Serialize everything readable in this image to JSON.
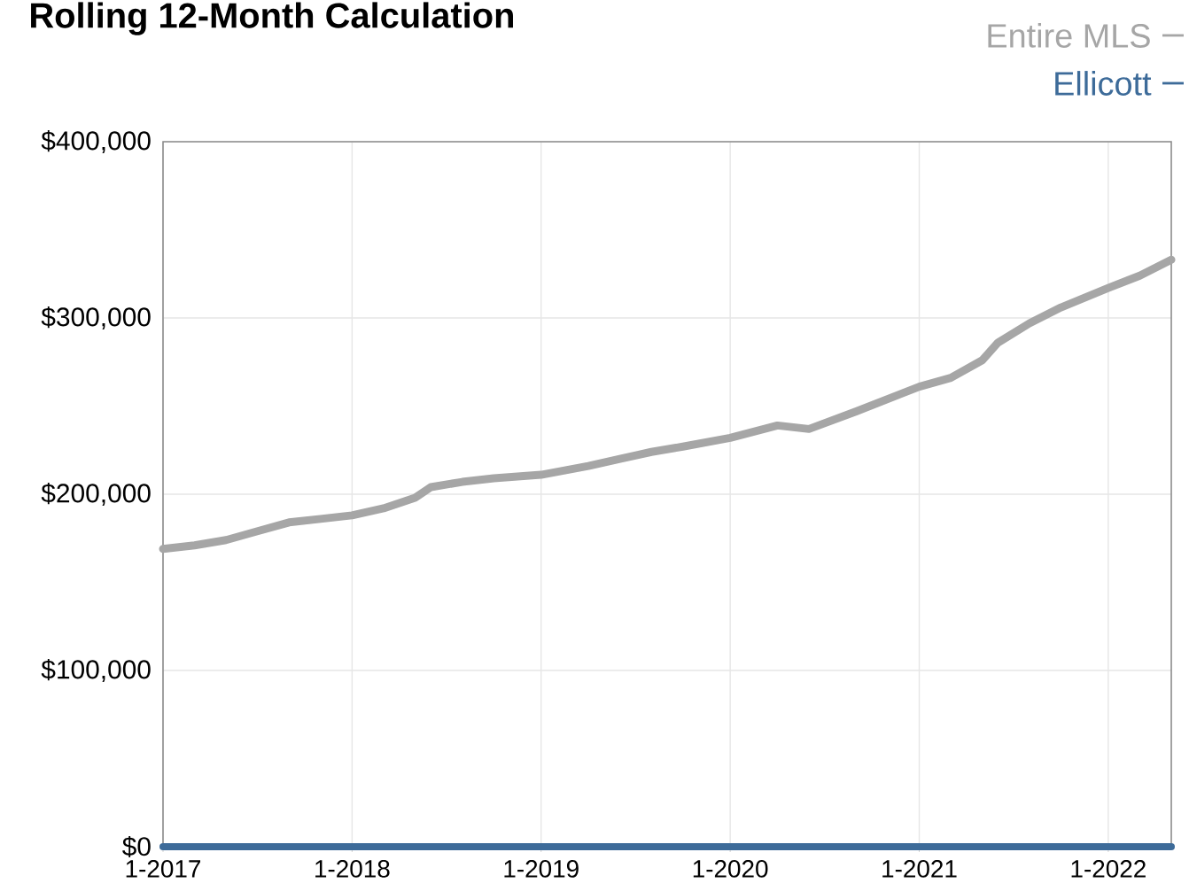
{
  "chart_data": {
    "type": "line",
    "title": "Rolling 12-Month Calculation",
    "x": [
      "2017-01",
      "2017-03",
      "2017-05",
      "2017-07",
      "2017-09",
      "2017-11",
      "2018-01",
      "2018-03",
      "2018-05",
      "2018-06",
      "2018-08",
      "2018-10",
      "2019-01",
      "2019-04",
      "2019-06",
      "2019-08",
      "2019-10",
      "2020-01",
      "2020-04",
      "2020-06",
      "2020-09",
      "2020-11",
      "2021-01",
      "2021-03",
      "2021-05",
      "2021-06",
      "2021-08",
      "2021-10",
      "2022-01",
      "2022-03",
      "2022-05"
    ],
    "series": [
      {
        "name": "Entire MLS",
        "color": "#a6a6a6",
        "values": [
          169000,
          171000,
          174000,
          179000,
          184000,
          186000,
          188000,
          192000,
          198000,
          204000,
          207000,
          209000,
          211000,
          216000,
          220000,
          224000,
          227000,
          232000,
          239000,
          237000,
          247000,
          254000,
          261000,
          266000,
          276000,
          286000,
          297000,
          306000,
          317000,
          324000,
          333000
        ]
      },
      {
        "name": "Ellicott",
        "color": "#3d6b99",
        "values": [
          0,
          0,
          0,
          0,
          0,
          0,
          0,
          0,
          0,
          0,
          0,
          0,
          0,
          0,
          0,
          0,
          0,
          0,
          0,
          0,
          0,
          0,
          0,
          0,
          0,
          0,
          0,
          0,
          0,
          0,
          0
        ]
      }
    ],
    "xlim": [
      "2017-01",
      "2022-05"
    ],
    "xticks": [
      {
        "value": "2017-01",
        "label": "1-2017"
      },
      {
        "value": "2018-01",
        "label": "1-2018"
      },
      {
        "value": "2019-01",
        "label": "1-2019"
      },
      {
        "value": "2020-01",
        "label": "1-2020"
      },
      {
        "value": "2021-01",
        "label": "1-2021"
      },
      {
        "value": "2022-01",
        "label": "1-2022"
      }
    ],
    "ylim": [
      0,
      400000
    ],
    "yticks": [
      {
        "value": 0,
        "label": "$0"
      },
      {
        "value": 100000,
        "label": "$100,000"
      },
      {
        "value": 200000,
        "label": "$200,000"
      },
      {
        "value": 300000,
        "label": "$300,000"
      },
      {
        "value": 400000,
        "label": "$400,000"
      }
    ],
    "grid": true,
    "legend": "top right",
    "marker": "none",
    "line_style": "solid"
  }
}
